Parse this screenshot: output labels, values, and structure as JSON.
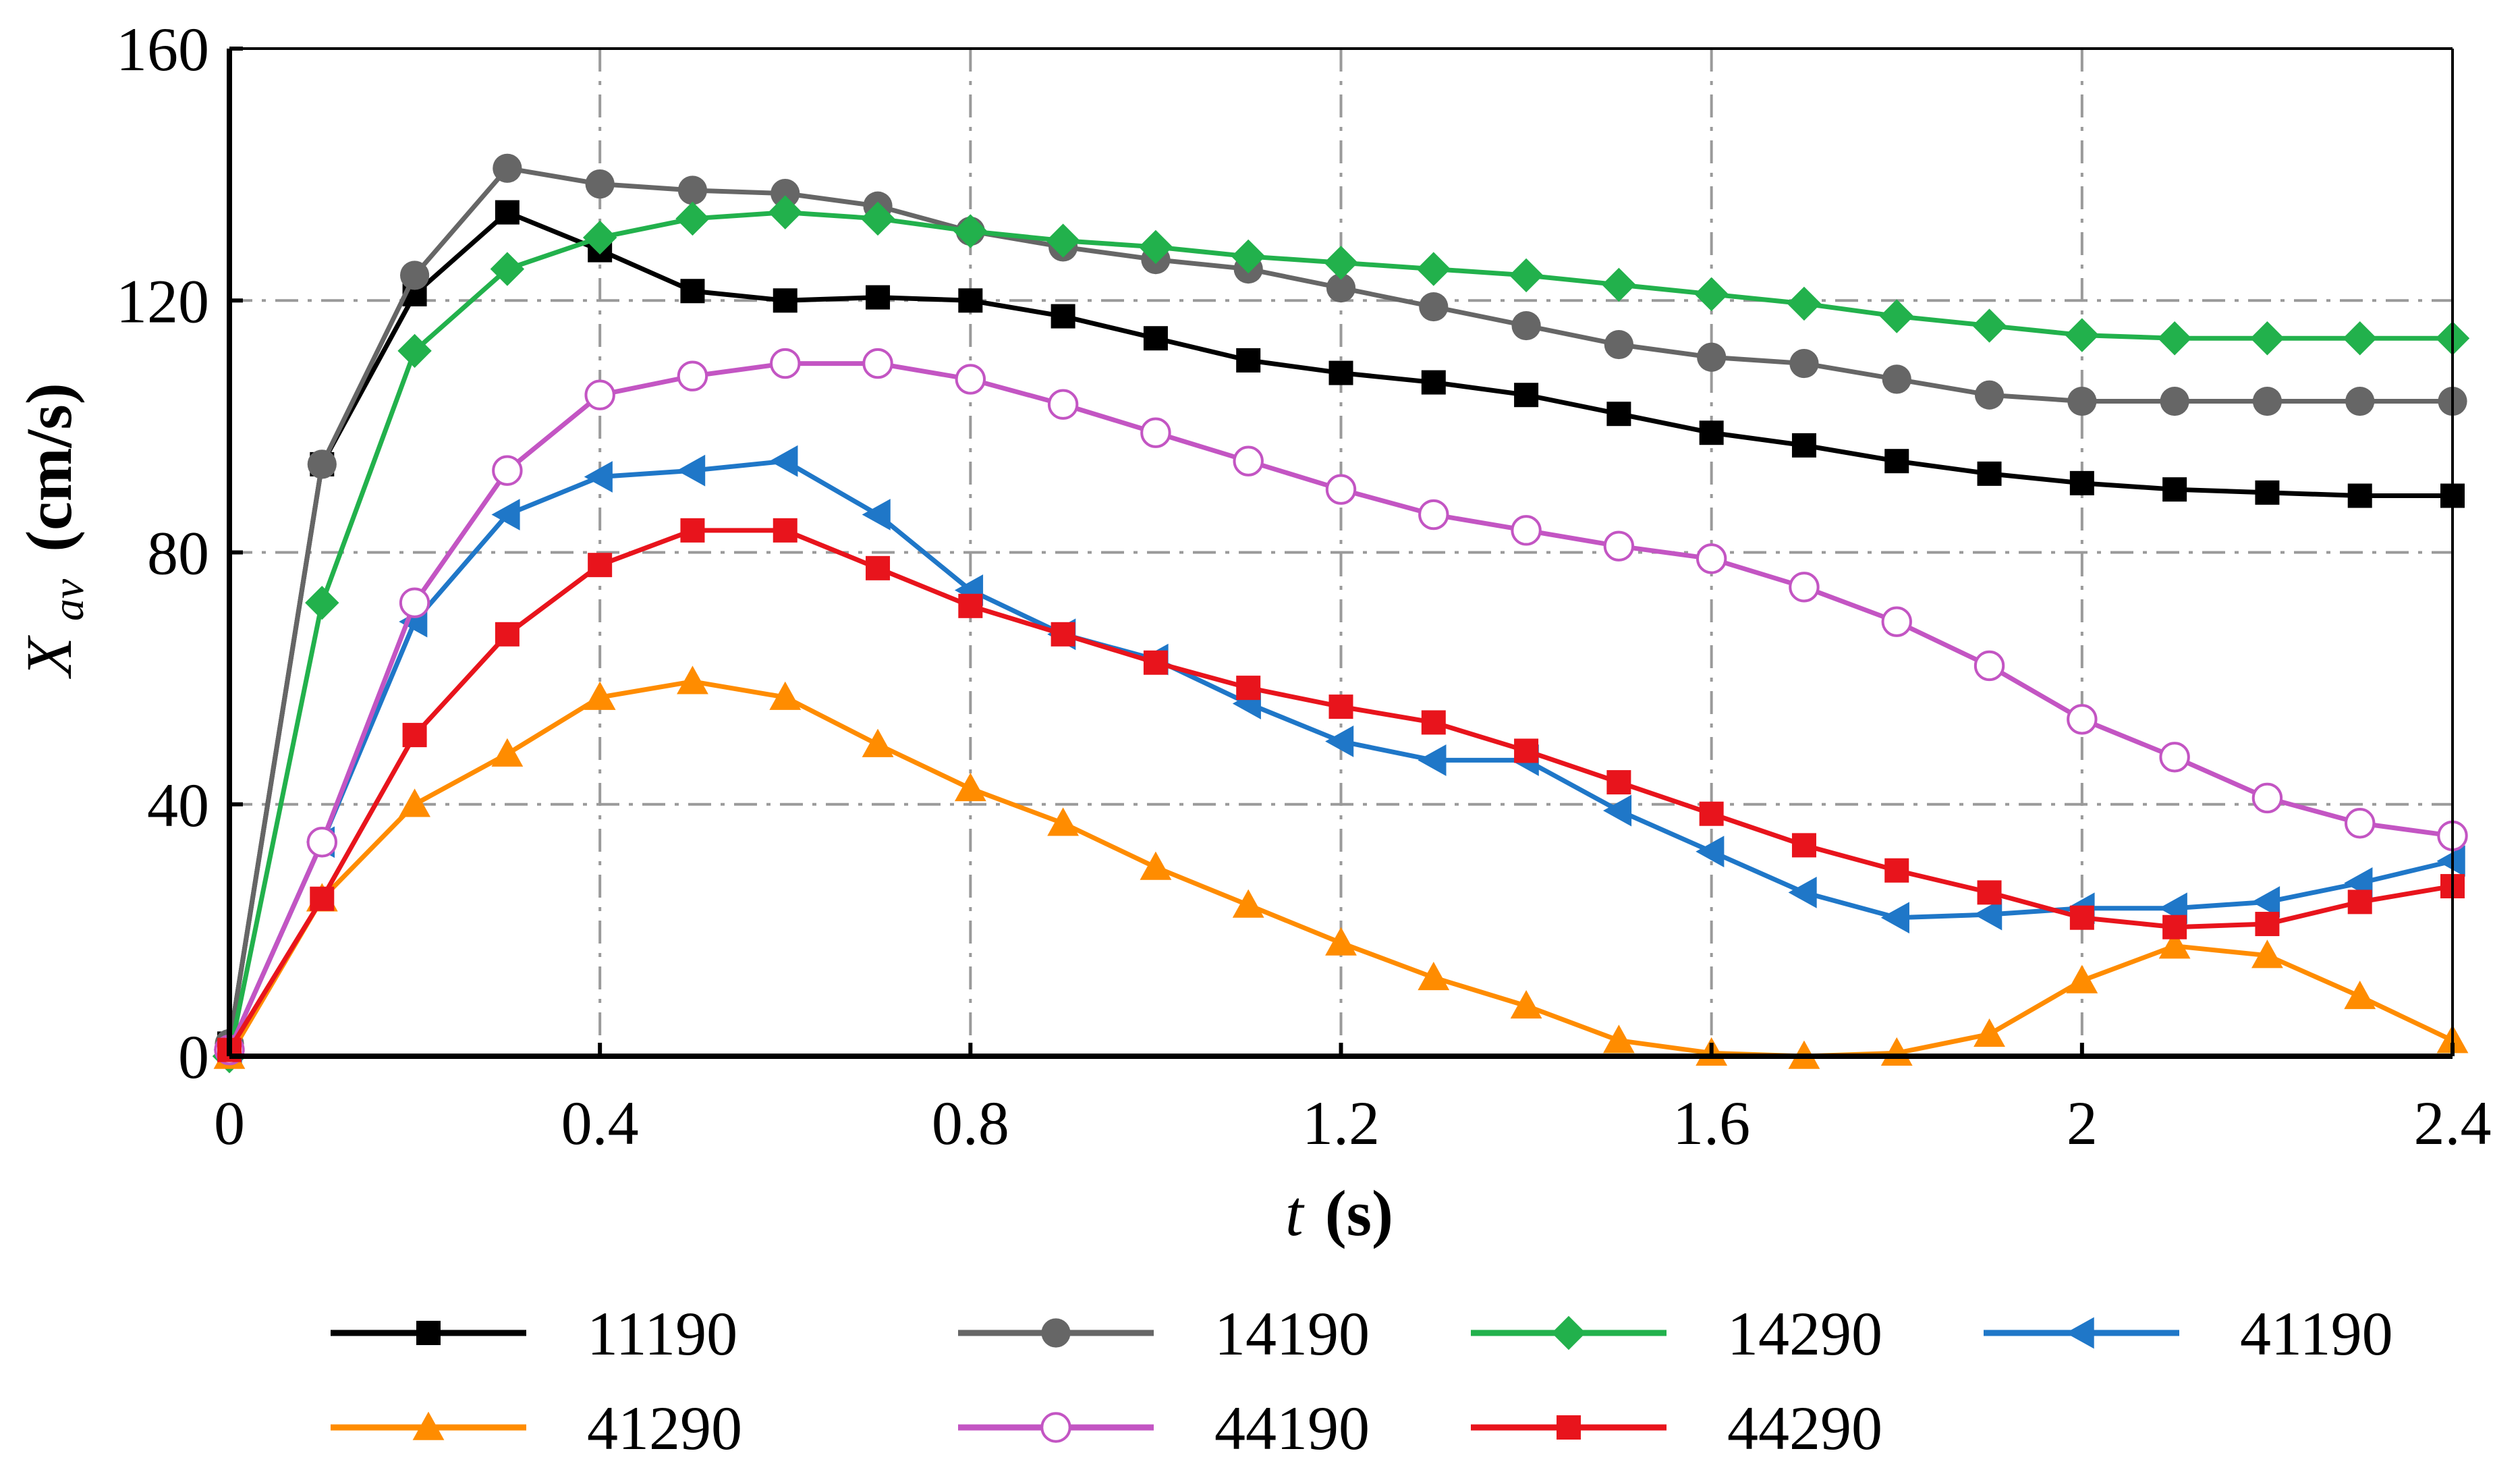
{
  "chart_data": {
    "type": "line",
    "title": "",
    "xlabel": {
      "italic": "t",
      "bold": "(s)"
    },
    "ylabel": {
      "italic": "X",
      "subscript": "av",
      "bold": "(cm/s)"
    },
    "xlim": [
      0,
      2.4
    ],
    "ylim": [
      0,
      160
    ],
    "xticks": [
      0,
      0.4,
      0.8,
      1.2,
      1.6,
      2,
      2.4
    ],
    "yticks": [
      0,
      40,
      80,
      120,
      160
    ],
    "xtick_labels": [
      "0",
      "0.4",
      "0.8",
      "1.2",
      "1.6",
      "2",
      "2.4"
    ],
    "ytick_labels": [
      "0",
      "40",
      "80",
      "120",
      "160"
    ],
    "grid": true,
    "legend_position": "bottom",
    "x": [
      0,
      0.1,
      0.2,
      0.3,
      0.4,
      0.5,
      0.6,
      0.7,
      0.8,
      0.9,
      1.0,
      1.1,
      1.2,
      1.3,
      1.4,
      1.5,
      1.6,
      1.7,
      1.8,
      1.9,
      2.0,
      2.1,
      2.2,
      2.3,
      2.4
    ],
    "series": [
      {
        "name": "11190",
        "color": "#000000",
        "marker": "square",
        "values": [
          2,
          94,
          121,
          134,
          128,
          121.5,
          120,
          120.5,
          120,
          117.5,
          114,
          110.5,
          108.5,
          107,
          105,
          102,
          99,
          97,
          94.5,
          92.5,
          91,
          90,
          89.5,
          89,
          89
        ]
      },
      {
        "name": "14190",
        "color": "#666666",
        "marker": "circle",
        "values": [
          2,
          94,
          124,
          141,
          138.5,
          137.5,
          137,
          135,
          131,
          128.5,
          126.5,
          125,
          122,
          119,
          116,
          113,
          111,
          110,
          107.5,
          105,
          104,
          104,
          104,
          104,
          104
        ]
      },
      {
        "name": "14290",
        "color": "#22b14c",
        "marker": "diamond",
        "values": [
          0,
          72,
          112,
          125,
          130,
          133,
          134,
          133,
          131,
          129.5,
          128.5,
          127,
          126,
          125,
          124,
          122.5,
          121,
          119.5,
          117.5,
          116,
          114.5,
          114,
          114,
          114,
          114
        ]
      },
      {
        "name": "41190",
        "color": "#1f77c8",
        "marker": "triangle-left",
        "values": [
          1,
          34,
          69,
          86,
          92,
          93,
          94.5,
          86,
          74,
          67,
          63,
          56,
          50,
          47,
          47,
          39,
          32.5,
          26,
          22,
          22.5,
          23.5,
          23.5,
          24.5,
          27.5,
          31
        ]
      },
      {
        "name": "41290",
        "color": "#ff8c00",
        "marker": "triangle-up",
        "values": [
          0,
          25,
          40,
          48,
          57,
          59.5,
          57,
          49.5,
          42.5,
          37,
          30,
          24,
          18,
          12.5,
          8,
          2.5,
          0.5,
          0,
          0.5,
          3.5,
          12,
          17.5,
          16,
          9.5,
          2.5
        ]
      },
      {
        "name": "44190",
        "color": "#c355c3",
        "marker": "open-circle",
        "values": [
          1,
          34,
          72,
          93,
          105,
          108,
          110,
          110,
          107.5,
          103.5,
          99,
          94.5,
          90,
          86,
          83.5,
          81,
          79,
          74.5,
          69,
          62,
          53.5,
          47.5,
          41,
          37,
          35
        ]
      },
      {
        "name": "44290",
        "color": "#e8141c",
        "marker": "square",
        "values": [
          1,
          25,
          51,
          67,
          78,
          83.5,
          83.5,
          77.5,
          71.5,
          67,
          62.5,
          58.5,
          55.5,
          53,
          48.5,
          43.5,
          38.5,
          33.5,
          29.5,
          26,
          22,
          20.5,
          21,
          24.5,
          27
        ]
      }
    ]
  }
}
